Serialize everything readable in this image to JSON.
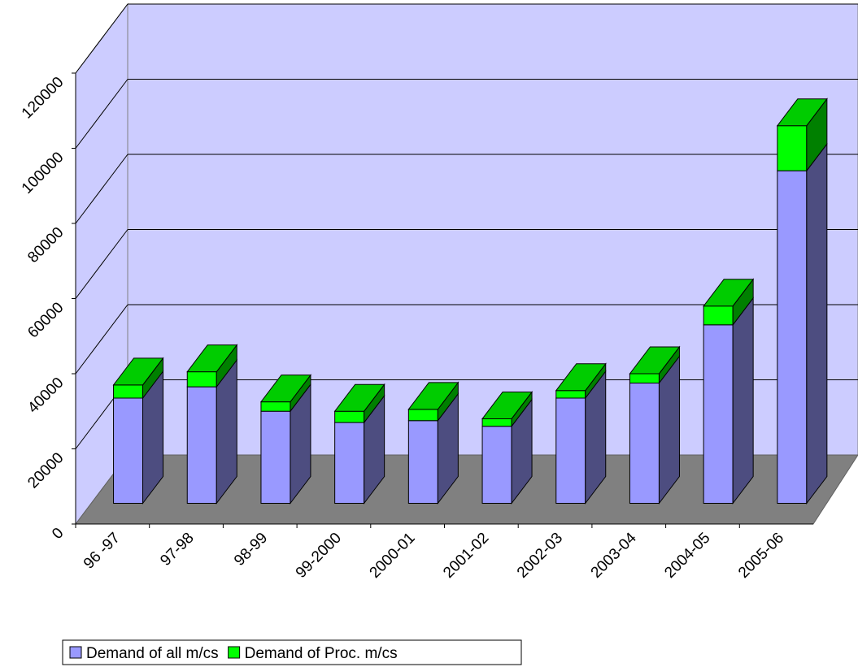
{
  "chart_data": {
    "type": "bar",
    "stacked": true,
    "categories": [
      "96 -97",
      "97-98",
      "98-99",
      "99-2000",
      "2000-01",
      "2001-02",
      "2002-03",
      "2003-04",
      "2004-05",
      "2005-06"
    ],
    "series": [
      {
        "name": "Demand of all m/cs",
        "color": "#9999ff",
        "values": [
          28000,
          31000,
          24500,
          21500,
          22000,
          20500,
          28000,
          32000,
          47500,
          88500
        ]
      },
      {
        "name": "Demand of Proc. m/cs",
        "color": "#00ff00",
        "values": [
          3500,
          4000,
          2500,
          3000,
          3000,
          2000,
          2000,
          2500,
          5000,
          12000
        ]
      }
    ],
    "ylim": [
      0,
      120000
    ],
    "yticks": [
      0,
      20000,
      40000,
      60000,
      80000,
      100000,
      120000
    ],
    "grid": true
  }
}
